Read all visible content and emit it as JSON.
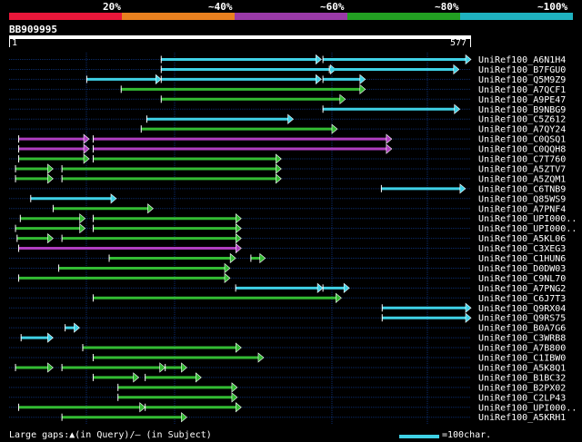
{
  "colors": {
    "bg": "#000000",
    "guide": "#0c2d6b",
    "cyan": "#3fd1e6",
    "green": "#33bb33",
    "magenta": "#b03ec0",
    "red": "#e8173a",
    "orange": "#e8801f",
    "purple": "#9a3aa8",
    "tick_green": "#22a022",
    "teal": "#1fb2c0"
  },
  "identity_scale": [
    "20%",
    "~40%",
    "~60%",
    "~80%",
    "~100%"
  ],
  "query": {
    "id": "BB909995",
    "start_label": "1",
    "end_label": "577"
  },
  "chart_data": {
    "type": "alignment-hits",
    "query_length": 577,
    "hits": [
      {
        "name": "UniRef100_A6N1H4",
        "color": "cyan",
        "segments": [
          [
            190,
            390
          ],
          [
            392,
            577
          ]
        ]
      },
      {
        "name": "UniRef100_B7FGU0",
        "color": "cyan",
        "segments": [
          [
            190,
            408
          ],
          [
            400,
            562
          ]
        ]
      },
      {
        "name": "UniRef100_Q5M9Z9",
        "color": "cyan",
        "segments": [
          [
            97,
            190
          ],
          [
            190,
            390
          ],
          [
            392,
            445
          ]
        ]
      },
      {
        "name": "UniRef100_A7QCF1",
        "color": "green",
        "segments": [
          [
            140,
            445
          ]
        ]
      },
      {
        "name": "UniRef100_A9PE47",
        "color": "green",
        "segments": [
          [
            190,
            420
          ]
        ]
      },
      {
        "name": "UniRef100_B9NBG9",
        "color": "cyan",
        "segments": [
          [
            392,
            563
          ]
        ]
      },
      {
        "name": "UniRef100_C5Z612",
        "color": "cyan",
        "segments": [
          [
            172,
            355
          ]
        ]
      },
      {
        "name": "UniRef100_A7QY24",
        "color": "green",
        "segments": [
          [
            165,
            410
          ]
        ]
      },
      {
        "name": "UniRef100_C0QSQ1",
        "color": "magenta",
        "segments": [
          [
            12,
            100
          ],
          [
            105,
            478
          ]
        ]
      },
      {
        "name": "UniRef100_C0QQH8",
        "color": "magenta",
        "segments": [
          [
            12,
            100
          ],
          [
            105,
            478
          ]
        ]
      },
      {
        "name": "UniRef100_C7T760",
        "color": "green",
        "segments": [
          [
            12,
            100
          ],
          [
            105,
            340
          ]
        ]
      },
      {
        "name": "UniRef100_A5ZTV7",
        "color": "green",
        "segments": [
          [
            8,
            55
          ],
          [
            66,
            340
          ]
        ]
      },
      {
        "name": "UniRef100_A5ZQM1",
        "color": "green",
        "segments": [
          [
            8,
            55
          ],
          [
            66,
            340
          ]
        ]
      },
      {
        "name": "UniRef100_C6TNB9",
        "color": "cyan",
        "segments": [
          [
            465,
            570
          ]
        ]
      },
      {
        "name": "UniRef100_Q85WS9",
        "color": "cyan",
        "segments": [
          [
            27,
            134
          ]
        ]
      },
      {
        "name": "UniRef100_A7PNF4",
        "color": "green",
        "segments": [
          [
            55,
            180
          ]
        ]
      },
      {
        "name": "UniRef100_UPI000..",
        "color": "green",
        "segments": [
          [
            14,
            95
          ],
          [
            105,
            290
          ]
        ]
      },
      {
        "name": "UniRef100_UPI000..",
        "color": "green",
        "segments": [
          [
            8,
            95
          ],
          [
            105,
            290
          ]
        ]
      },
      {
        "name": "UniRef100_A5KL06",
        "color": "green",
        "segments": [
          [
            10,
            55
          ],
          [
            66,
            290
          ]
        ]
      },
      {
        "name": "UniRef100_C3XEG3",
        "color": "magenta",
        "segments": [
          [
            12,
            290
          ]
        ]
      },
      {
        "name": "UniRef100_C1HUN6",
        "color": "green",
        "segments": [
          [
            125,
            283
          ],
          [
            302,
            320
          ]
        ]
      },
      {
        "name": "UniRef100_D0DW03",
        "color": "green",
        "segments": [
          [
            62,
            276
          ]
        ]
      },
      {
        "name": "UniRef100_C9NL70",
        "color": "green",
        "segments": [
          [
            12,
            276
          ]
        ]
      },
      {
        "name": "UniRef100_A7PNG2",
        "color": "cyan",
        "segments": [
          [
            283,
            392
          ],
          [
            392,
            425
          ]
        ]
      },
      {
        "name": "UniRef100_C6J7T3",
        "color": "green",
        "segments": [
          [
            105,
            415
          ]
        ]
      },
      {
        "name": "UniRef100_Q9RX04",
        "color": "cyan",
        "segments": [
          [
            466,
            577
          ]
        ]
      },
      {
        "name": "UniRef100_Q9RS75",
        "color": "cyan",
        "segments": [
          [
            466,
            577
          ]
        ]
      },
      {
        "name": "UniRef100_B0A7G6",
        "color": "cyan",
        "segments": [
          [
            70,
            88
          ]
        ]
      },
      {
        "name": "UniRef100_C3WRB8",
        "color": "cyan",
        "segments": [
          [
            15,
            55
          ]
        ]
      },
      {
        "name": "UniRef100_A7B800",
        "color": "green",
        "segments": [
          [
            92,
            290
          ]
        ]
      },
      {
        "name": "UniRef100_C1IBW0",
        "color": "green",
        "segments": [
          [
            105,
            318
          ]
        ]
      },
      {
        "name": "UniRef100_A5K8Q1",
        "color": "green",
        "segments": [
          [
            8,
            55
          ],
          [
            66,
            195
          ],
          [
            195,
            222
          ]
        ]
      },
      {
        "name": "UniRef100_B1BC32",
        "color": "green",
        "segments": [
          [
            105,
            162
          ],
          [
            170,
            240
          ]
        ]
      },
      {
        "name": "UniRef100_B2PX02",
        "color": "green",
        "segments": [
          [
            136,
            285
          ]
        ]
      },
      {
        "name": "UniRef100_C2LP43",
        "color": "green",
        "segments": [
          [
            136,
            285
          ]
        ]
      },
      {
        "name": "UniRef100_UPI000..",
        "color": "green",
        "segments": [
          [
            12,
            170
          ],
          [
            170,
            290
          ]
        ]
      },
      {
        "name": "UniRef100_A5KRH1",
        "color": "green",
        "segments": [
          [
            66,
            222
          ]
        ]
      }
    ]
  },
  "footer": {
    "gaps_text": "Large gaps:▲(in Query)/– (in Subject)",
    "scale_text": "=100char."
  }
}
